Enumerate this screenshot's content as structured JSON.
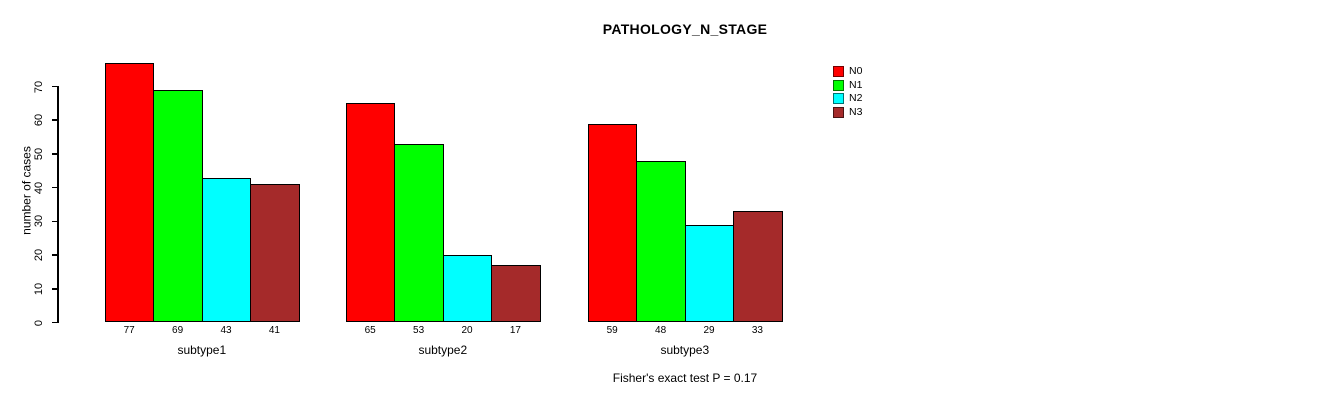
{
  "chart_data": {
    "type": "bar",
    "title": "PATHOLOGY_N_STAGE",
    "ylabel": "number of cases",
    "xlabel": "",
    "categories": [
      "subtype1",
      "subtype2",
      "subtype3"
    ],
    "series": [
      {
        "name": "N0",
        "color": "#ff0000",
        "values": [
          77,
          65,
          59
        ]
      },
      {
        "name": "N1",
        "color": "#00ff00",
        "values": [
          69,
          53,
          48
        ]
      },
      {
        "name": "N2",
        "color": "#00ffff",
        "values": [
          43,
          20,
          29
        ]
      },
      {
        "name": "N3",
        "color": "#a52a2a",
        "values": [
          41,
          17,
          33
        ]
      }
    ],
    "bar_value_labels": {
      "subtype1": [
        77,
        69,
        43,
        41
      ],
      "subtype2": [
        65,
        53,
        20,
        17
      ],
      "subtype3": [
        59,
        48,
        29,
        33
      ]
    },
    "yticks": [
      0,
      10,
      20,
      30,
      40,
      50,
      60,
      70
    ],
    "ylim": [
      0,
      70
    ],
    "grid": false,
    "legend_position": "right",
    "legend_entries": [
      "N0",
      "N1",
      "N2",
      "N3"
    ],
    "footer": "Fisher's exact test P = 0.17"
  }
}
